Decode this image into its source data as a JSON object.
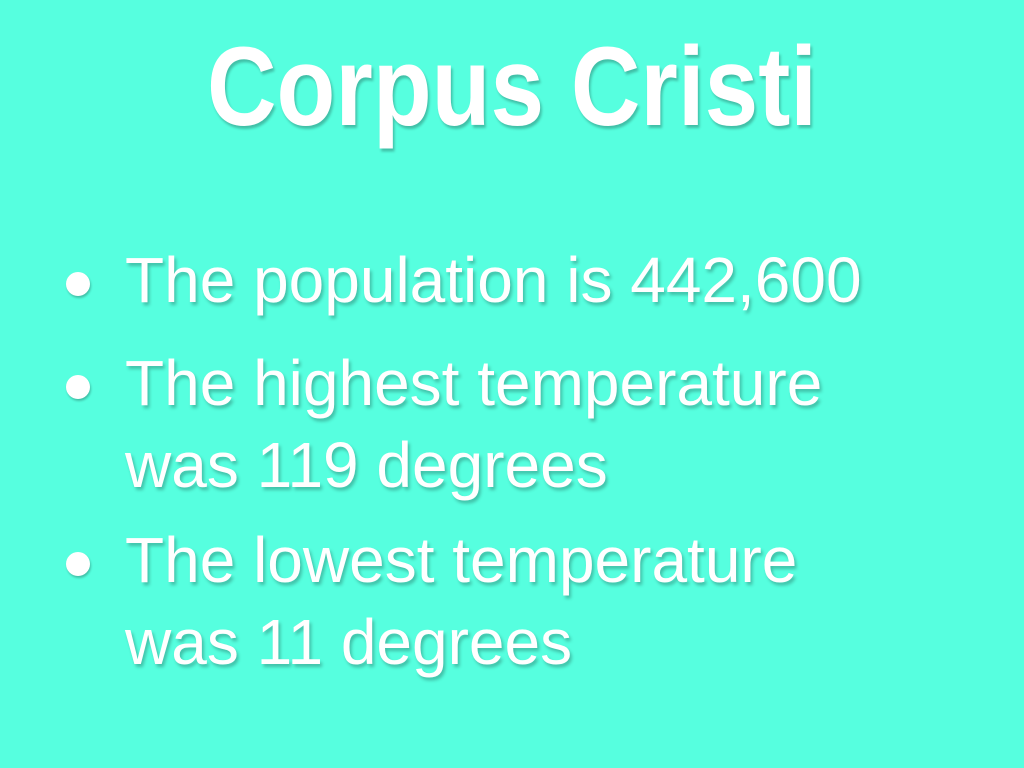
{
  "slide": {
    "title": "Corpus Cristi",
    "bullets": [
      {
        "lines": [
          "The population is 442,600"
        ]
      },
      {
        "lines": [
          "The highest temperature",
          "was 119 degrees"
        ]
      },
      {
        "lines": [
          "The lowest temperature",
          "was 11 degrees"
        ]
      }
    ],
    "background_color": "#56ffdf",
    "text_color": "#ffffff"
  }
}
